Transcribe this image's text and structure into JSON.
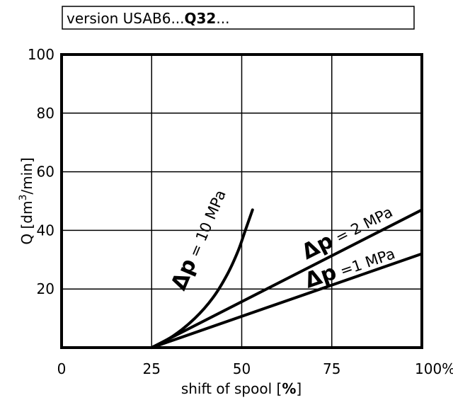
{
  "chart_data": {
    "type": "line",
    "version_box": {
      "prefix": "version USAB6...",
      "bold": "Q32",
      "suffix": "..."
    },
    "xlabel": {
      "text": "shift of spool [",
      "bold": "%",
      "end": "]"
    },
    "ylabel": {
      "prefix": "Q [dm",
      "sup": "3",
      "suffix": "/min]"
    },
    "xlim": [
      0,
      100
    ],
    "ylim": [
      0,
      100
    ],
    "x_ticks": [
      "0",
      "25",
      "50",
      "75",
      "100%"
    ],
    "x_tick_values": [
      0,
      25,
      50,
      75,
      100
    ],
    "y_ticks": [
      "20",
      "40",
      "60",
      "80",
      "100"
    ],
    "y_tick_values": [
      20,
      40,
      60,
      80,
      100
    ],
    "grid": true,
    "series": [
      {
        "name": "Δp = 10 MPa",
        "label_parts": {
          "delta": "Δp",
          "rest": " = 10 MPa"
        },
        "x": [
          25,
          31,
          37,
          42,
          46,
          49,
          51,
          53
        ],
        "y": [
          0,
          4,
          10,
          17,
          25,
          33,
          40,
          47
        ]
      },
      {
        "name": "Δp = 2 MPa",
        "label_parts": {
          "delta": "Δp",
          "rest": " = 2 MPa"
        },
        "x": [
          25,
          100
        ],
        "y": [
          0,
          47
        ]
      },
      {
        "name": "Δp =1 MPa",
        "label_parts": {
          "delta": "Δp",
          "rest": " =1 MPa"
        },
        "x": [
          25,
          100
        ],
        "y": [
          0,
          32
        ]
      }
    ]
  }
}
